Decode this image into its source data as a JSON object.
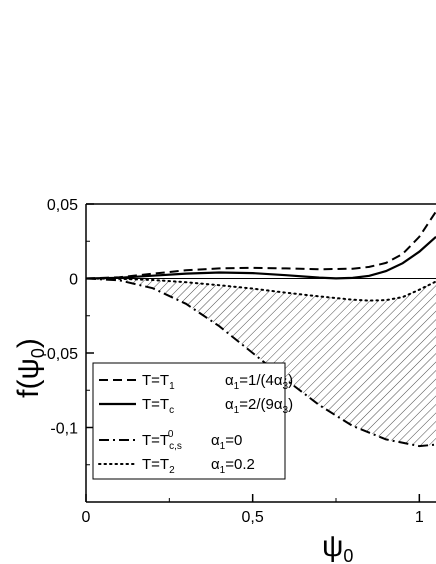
{
  "chart_data": {
    "type": "line",
    "xlabel": "ψ",
    "xlabel_sub": "0",
    "ylabel": "f(ψ",
    "ylabel_sub": "0",
    "ylabel_close": ")",
    "xlim": [
      0,
      1.05
    ],
    "ylim": [
      -0.15,
      0.05
    ],
    "x_ticks": [
      {
        "value": 0,
        "label": "0"
      },
      {
        "value": 0.5,
        "label": "0,5"
      },
      {
        "value": 1,
        "label": "1"
      }
    ],
    "y_ticks": [
      {
        "value": 0.05,
        "label": "0,05"
      },
      {
        "value": 0,
        "label": "0"
      },
      {
        "value": -0.05,
        "label": "-0,05"
      },
      {
        "value": -0.1,
        "label": "-0,1"
      }
    ],
    "legend_position": "bottom-left",
    "hatched_region": "between T=T2 curve (upper) and T=T0c,s curve (lower)",
    "series": [
      {
        "legend_main": "T=T",
        "legend_sub": "1",
        "legend_alpha": "α",
        "legend_alpha_sub": "1",
        "legend_rest": "=1/(4α",
        "legend_rest_sub": "3",
        "legend_close": ")",
        "dash": "dashed",
        "points": [
          [
            0,
            0
          ],
          [
            0.1,
            0.0008
          ],
          [
            0.2,
            0.0032
          ],
          [
            0.3,
            0.0055
          ],
          [
            0.4,
            0.0068
          ],
          [
            0.5,
            0.0072
          ],
          [
            0.6,
            0.0068
          ],
          [
            0.7,
            0.0062
          ],
          [
            0.8,
            0.0066
          ],
          [
            0.85,
            0.0078
          ],
          [
            0.9,
            0.0105
          ],
          [
            0.95,
            0.0165
          ],
          [
            1.0,
            0.028
          ],
          [
            1.05,
            0.045
          ]
        ]
      },
      {
        "legend_main": "T=T",
        "legend_sub": "c",
        "legend_alpha": "α",
        "legend_alpha_sub": "1",
        "legend_rest": "=2/(9α",
        "legend_rest_sub": "3",
        "legend_close": ")",
        "dash": "solid",
        "points": [
          [
            0,
            0
          ],
          [
            0.1,
            0.0005
          ],
          [
            0.2,
            0.0019
          ],
          [
            0.3,
            0.0033
          ],
          [
            0.4,
            0.004
          ],
          [
            0.5,
            0.0036
          ],
          [
            0.6,
            0.0022
          ],
          [
            0.7,
            0.0006
          ],
          [
            0.75,
            0.0001
          ],
          [
            0.8,
            0.0004
          ],
          [
            0.85,
            0.0018
          ],
          [
            0.9,
            0.005
          ],
          [
            0.95,
            0.0103
          ],
          [
            1.0,
            0.018
          ],
          [
            1.05,
            0.028
          ]
        ]
      },
      {
        "legend_main": "T=T",
        "legend_sub": "c,s",
        "legend_sup": "0",
        "legend_alpha": "α",
        "legend_alpha_sub": "1",
        "legend_rest": "=0",
        "legend_rest_sub": "",
        "legend_close": "",
        "dash": "dashdot",
        "points": [
          [
            0,
            0
          ],
          [
            0.1,
            -0.0012
          ],
          [
            0.2,
            -0.0065
          ],
          [
            0.3,
            -0.017
          ],
          [
            0.4,
            -0.032
          ],
          [
            0.5,
            -0.05
          ],
          [
            0.6,
            -0.068
          ],
          [
            0.7,
            -0.085
          ],
          [
            0.8,
            -0.099
          ],
          [
            0.9,
            -0.108
          ],
          [
            1.0,
            -0.1125
          ],
          [
            1.05,
            -0.1115
          ]
        ]
      },
      {
        "legend_main": "T=T",
        "legend_sub": "2",
        "legend_alpha": "α",
        "legend_alpha_sub": "1",
        "legend_rest": "=0.2",
        "legend_rest_sub": "",
        "legend_close": "",
        "dash": "dotted",
        "points": [
          [
            0,
            0
          ],
          [
            0.1,
            -0.0002
          ],
          [
            0.2,
            -0.001
          ],
          [
            0.3,
            -0.0025
          ],
          [
            0.4,
            -0.0045
          ],
          [
            0.5,
            -0.0068
          ],
          [
            0.6,
            -0.0095
          ],
          [
            0.7,
            -0.012
          ],
          [
            0.8,
            -0.0142
          ],
          [
            0.85,
            -0.0148
          ],
          [
            0.9,
            -0.0145
          ],
          [
            0.95,
            -0.0125
          ],
          [
            1.0,
            -0.0075
          ],
          [
            1.05,
            -0.002
          ]
        ]
      }
    ]
  }
}
